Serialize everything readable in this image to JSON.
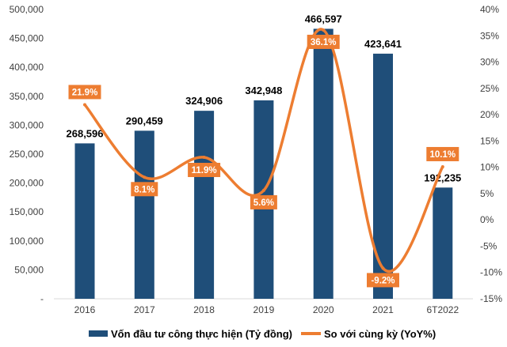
{
  "chart_data": {
    "type": "bar+line",
    "categories": [
      "2016",
      "2017",
      "2018",
      "2019",
      "2020",
      "2021",
      "6T2022"
    ],
    "series": [
      {
        "name": "Vốn đầu tư công thực hiện (Tỷ đồng)",
        "type": "bar",
        "axis": "left",
        "color": "#1F4E79",
        "values": [
          268596,
          290459,
          324906,
          342948,
          466597,
          423641,
          192235
        ],
        "labels": [
          "268,596",
          "290,459",
          "324,906",
          "342,948",
          "466,597",
          "423,641",
          "192,235"
        ]
      },
      {
        "name": "So với cùng kỳ (YoY%)",
        "type": "line",
        "axis": "right",
        "color": "#ED7D31",
        "smooth": true,
        "values": [
          21.9,
          8.1,
          11.9,
          5.6,
          36.1,
          -9.2,
          10.1
        ],
        "labels": [
          "21.9%",
          "8.1%",
          "11.9%",
          "5.6%",
          "36.1%",
          "-9.2%",
          "10.1%"
        ]
      }
    ],
    "left_axis": {
      "ylim": [
        0,
        500000
      ],
      "ticks": [
        "-",
        "50,000",
        "100,000",
        "150,000",
        "200,000",
        "250,000",
        "300,000",
        "350,000",
        "400,000",
        "450,000",
        "500,000"
      ]
    },
    "right_axis": {
      "ylim": [
        -15,
        40
      ],
      "ticks": [
        "-15%",
        "-10%",
        "-5%",
        "0%",
        "5%",
        "10%",
        "15%",
        "20%",
        "25%",
        "30%",
        "35%",
        "40%"
      ]
    },
    "grid": false,
    "legend": "bottom"
  }
}
